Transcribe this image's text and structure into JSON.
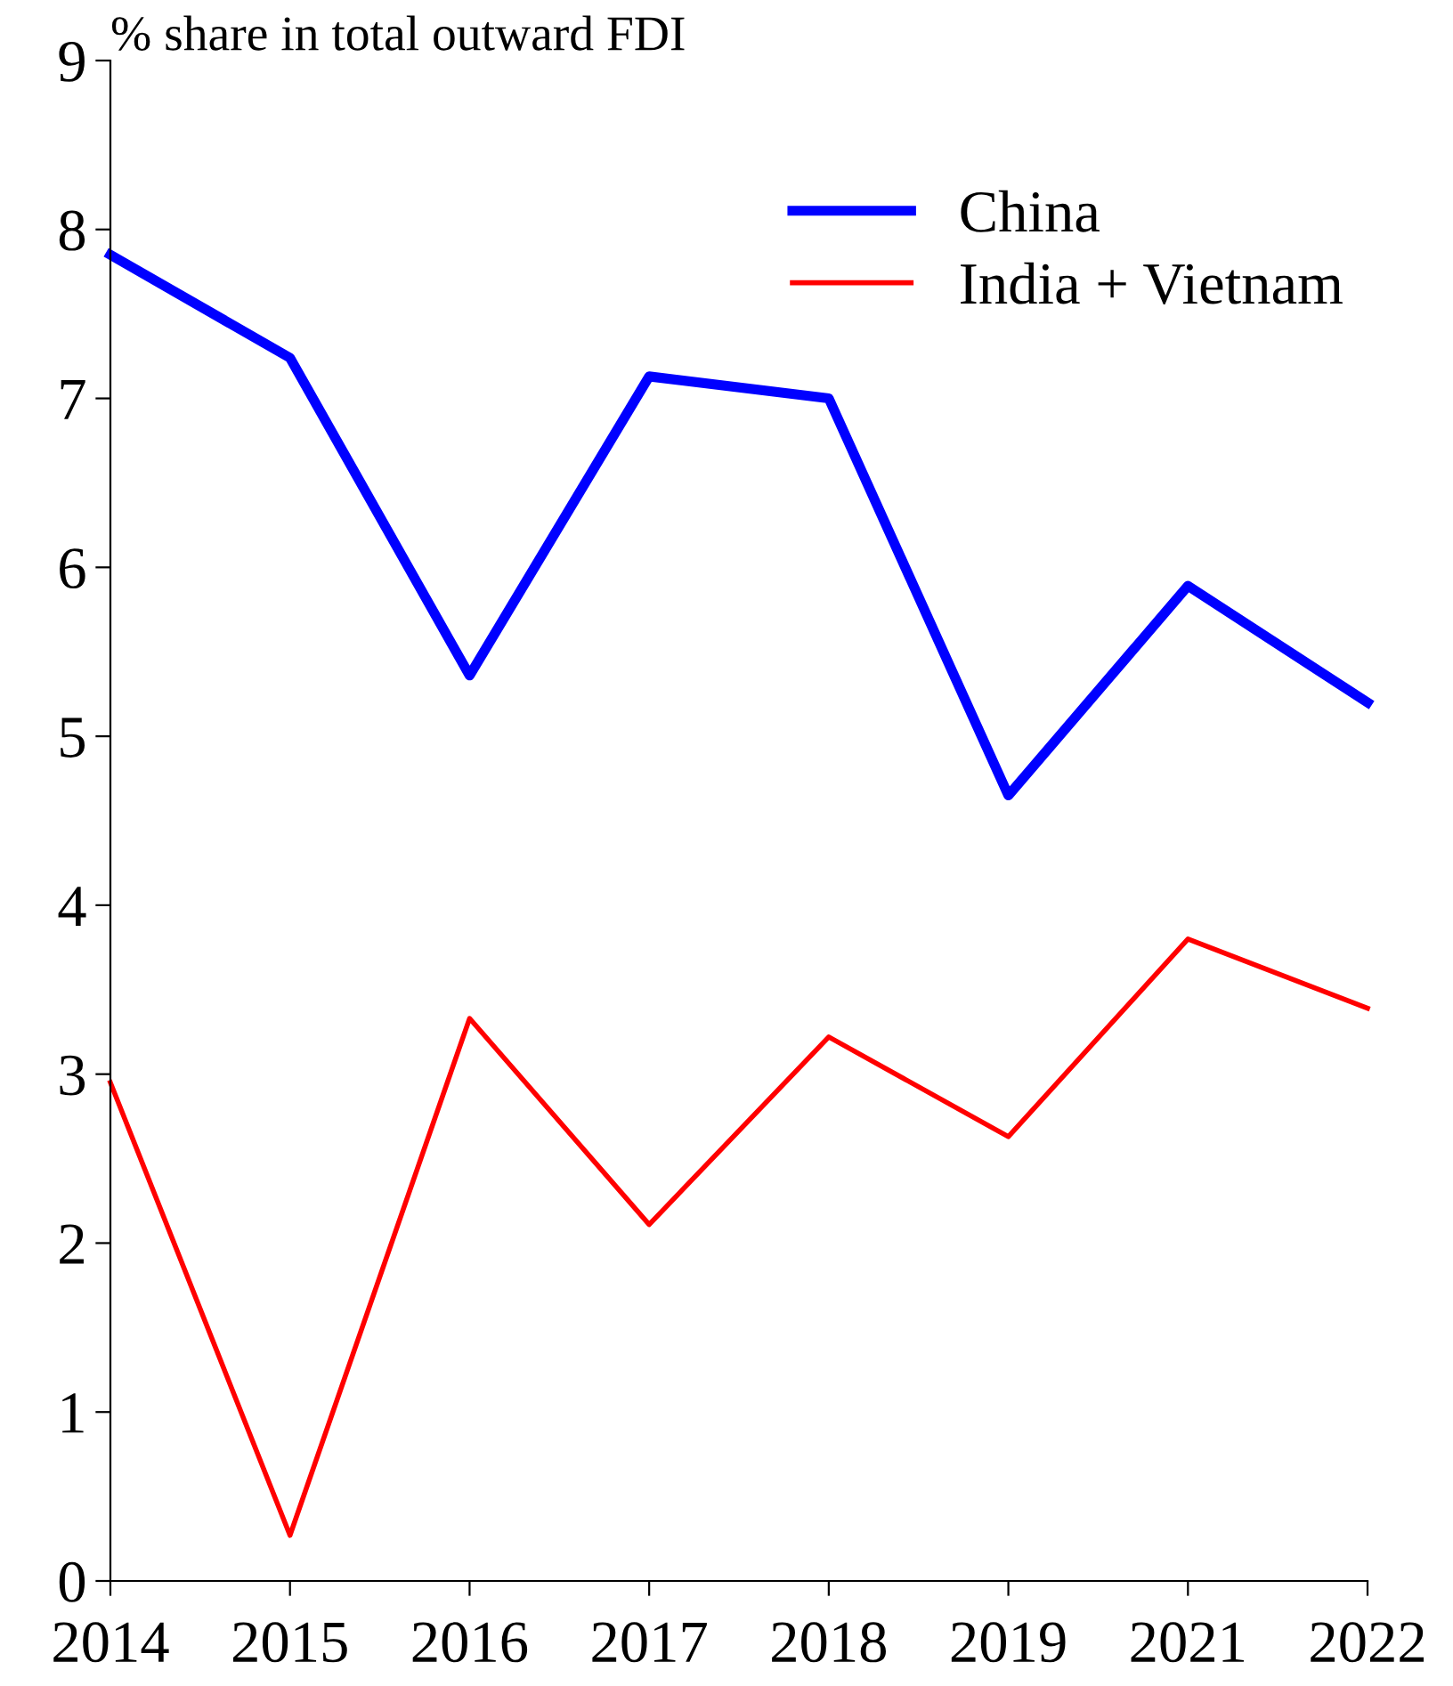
{
  "chart_data": {
    "type": "line",
    "ylabel": "% share in total outward FDI",
    "categories": [
      "2014",
      "2015",
      "2016",
      "2017",
      "2018",
      "2019",
      "2021",
      "2022"
    ],
    "series": [
      {
        "name": "China",
        "color": "#0000ff",
        "values": [
          7.85,
          7.24,
          5.36,
          7.13,
          7.0,
          4.65,
          5.89,
          5.2
        ]
      },
      {
        "name": "India + Vietnam",
        "color": "#ff0000",
        "values": [
          2.95,
          0.27,
          3.33,
          2.11,
          3.22,
          2.63,
          3.8,
          3.39
        ]
      }
    ],
    "ylim": [
      0,
      9
    ],
    "yticks": [
      0,
      1,
      2,
      3,
      4,
      5,
      6,
      7,
      8,
      9
    ],
    "grid": false,
    "legend": "top right",
    "marker": "none",
    "line_style": "solid"
  }
}
